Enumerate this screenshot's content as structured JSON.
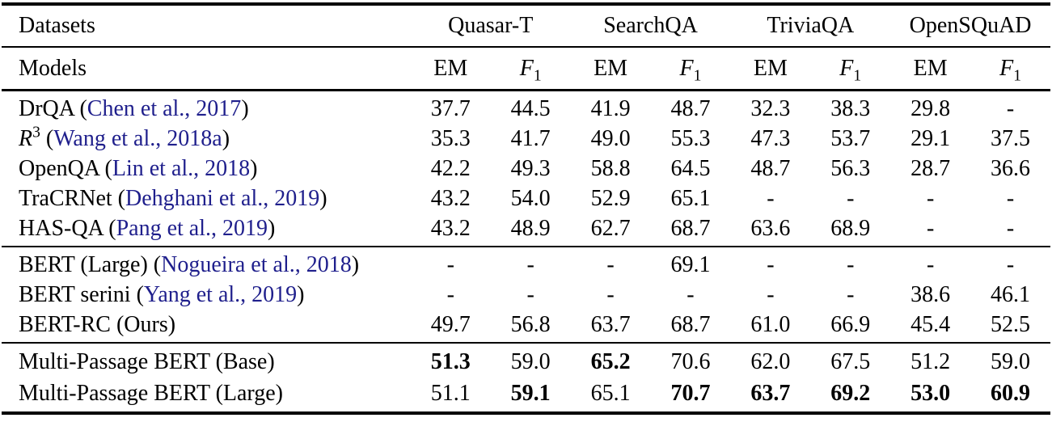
{
  "colors": {
    "text": "#000000",
    "citation_link": "#1f1f8c",
    "rule": "#000000",
    "background": "#ffffff"
  },
  "table": {
    "header": {
      "datasets_label": "Datasets",
      "models_label": "Models",
      "dataset_groups": [
        "Quasar-T",
        "SearchQA",
        "TriviaQA",
        "OpenSQuAD"
      ],
      "metric_em": "EM",
      "metric_f_letter": "F",
      "metric_f_sub": "1"
    },
    "citation_open": " (",
    "citation_close": ")",
    "groups": [
      {
        "rows": [
          {
            "name": "DrQA",
            "citation": "Chen et al., 2017",
            "values": [
              "37.7",
              "44.5",
              "41.9",
              "48.7",
              "32.3",
              "38.3",
              "29.8",
              "-"
            ],
            "bold": []
          },
          {
            "name": "R",
            "name_sup": "3",
            "name_italic": true,
            "citation": "Wang et al., 2018a",
            "values": [
              "35.3",
              "41.7",
              "49.0",
              "55.3",
              "47.3",
              "53.7",
              "29.1",
              "37.5"
            ],
            "bold": []
          },
          {
            "name": "OpenQA",
            "citation": "Lin et al., 2018",
            "values": [
              "42.2",
              "49.3",
              "58.8",
              "64.5",
              "48.7",
              "56.3",
              "28.7",
              "36.6"
            ],
            "bold": []
          },
          {
            "name": "TraCRNet",
            "citation": "Dehghani et al., 2019",
            "values": [
              "43.2",
              "54.0",
              "52.9",
              "65.1",
              "-",
              "-",
              "-",
              "-"
            ],
            "bold": []
          },
          {
            "name": "HAS-QA",
            "citation": "Pang et al., 2019",
            "values": [
              "43.2",
              "48.9",
              "62.7",
              "68.7",
              "63.6",
              "68.9",
              "-",
              "-"
            ],
            "bold": []
          }
        ]
      },
      {
        "rows": [
          {
            "name": "BERT (Large)",
            "citation": "Nogueira et al., 2018",
            "values": [
              "-",
              "-",
              "-",
              "69.1",
              "-",
              "-",
              "-",
              "-"
            ],
            "bold": []
          },
          {
            "name": "BERT serini",
            "citation": "Yang et al., 2019",
            "values": [
              "-",
              "-",
              "-",
              "-",
              "-",
              "-",
              "38.6",
              "46.1"
            ],
            "bold": []
          },
          {
            "name": "BERT-RC (Ours)",
            "citation": null,
            "values": [
              "49.7",
              "56.8",
              "63.7",
              "68.7",
              "61.0",
              "66.9",
              "45.4",
              "52.5"
            ],
            "bold": []
          }
        ]
      },
      {
        "rows": [
          {
            "name": "Multi-Passage BERT (Base)",
            "citation": null,
            "values": [
              "51.3",
              "59.0",
              "65.2",
              "70.6",
              "62.0",
              "67.5",
              "51.2",
              "59.0"
            ],
            "bold": [
              0,
              2
            ]
          },
          {
            "name": "Multi-Passage BERT (Large)",
            "citation": null,
            "values": [
              "51.1",
              "59.1",
              "65.1",
              "70.7",
              "63.7",
              "69.2",
              "53.0",
              "60.9"
            ],
            "bold": [
              1,
              3,
              4,
              5,
              6,
              7
            ]
          }
        ]
      }
    ]
  }
}
